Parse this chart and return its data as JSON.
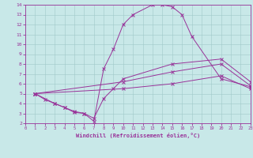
{
  "xlabel": "Windchill (Refroidissement éolien,°C)",
  "bg_color": "#c8e8e8",
  "line_color": "#993399",
  "grid_color": "#a0c8c8",
  "xlim": [
    0,
    23
  ],
  "ylim": [
    2,
    14
  ],
  "xticks": [
    0,
    1,
    2,
    3,
    4,
    5,
    6,
    7,
    8,
    9,
    10,
    11,
    12,
    13,
    14,
    15,
    16,
    17,
    18,
    19,
    20,
    21,
    22,
    23
  ],
  "yticks": [
    2,
    3,
    4,
    5,
    6,
    7,
    8,
    9,
    10,
    11,
    12,
    13,
    14
  ],
  "line1_x": [
    1,
    2,
    3,
    4,
    5,
    6,
    7,
    8,
    9,
    10,
    11,
    13,
    14,
    15,
    16,
    17,
    20,
    23
  ],
  "line1_y": [
    5.0,
    4.4,
    4.0,
    3.6,
    3.1,
    3.0,
    2.2,
    7.5,
    9.5,
    12.0,
    13.0,
    14.0,
    14.0,
    13.8,
    13.0,
    10.8,
    6.5,
    5.7
  ],
  "line2_x": [
    1,
    3,
    4,
    5,
    6,
    7,
    8,
    9,
    10,
    15,
    20,
    23
  ],
  "line2_y": [
    5.0,
    4.0,
    3.6,
    3.2,
    3.0,
    2.5,
    4.5,
    5.5,
    6.5,
    8.0,
    8.5,
    6.2
  ],
  "line3_x": [
    1,
    10,
    15,
    20,
    23
  ],
  "line3_y": [
    5.0,
    6.2,
    7.2,
    8.0,
    5.8
  ],
  "line4_x": [
    1,
    10,
    15,
    20,
    23
  ],
  "line4_y": [
    5.0,
    5.5,
    6.0,
    6.8,
    5.5
  ]
}
